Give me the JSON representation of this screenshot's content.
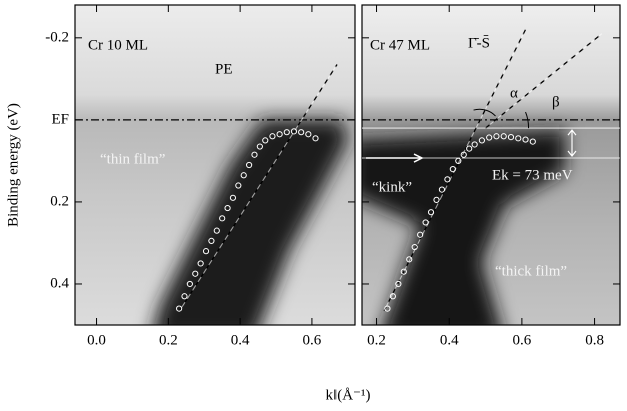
{
  "chart_data": [
    {
      "type": "scatter",
      "ylabel": "Binding energy (eV)",
      "xlabel": "k‖(Å⁻¹)",
      "annotations": [
        "Cr 10 ML",
        "PE",
        "“thin film”"
      ],
      "xlim": [
        -0.06,
        0.72
      ],
      "ylim": [
        0.5,
        -0.28
      ],
      "xticks": [
        {
          "value": 0,
          "label": "0.0"
        },
        0.2,
        0.4,
        0.6
      ],
      "yticks": [
        -0.2,
        {
          "value": 0,
          "label": "EF"
        },
        0.2,
        0.4
      ],
      "y_tick_labels": true,
      "series": [
        {
          "color": "#ffffff",
          "x": [
            0.23,
            0.245,
            0.26,
            0.275,
            0.29,
            0.305,
            0.32,
            0.335,
            0.35,
            0.365,
            0.38,
            0.395,
            0.41,
            0.425,
            0.44,
            0.455,
            0.47,
            0.49,
            0.51,
            0.53,
            0.55,
            0.57,
            0.59,
            0.61
          ],
          "values": [
            0.46,
            0.43,
            0.4,
            0.375,
            0.35,
            0.32,
            0.295,
            0.27,
            0.24,
            0.215,
            0.19,
            0.16,
            0.135,
            0.11,
            0.085,
            0.065,
            0.05,
            0.04,
            0.035,
            0.03,
            0.028,
            0.03,
            0.035,
            0.045
          ]
        }
      ],
      "fits": [
        {
          "x": [
            0.23,
            0.67
          ],
          "y": [
            0.467,
            -0.135
          ]
        }
      ],
      "reference_lines": []
    },
    {
      "type": "scatter",
      "annotations": [
        "Cr 47 ML",
        "Γ̄-S̄",
        "α",
        "β",
        "“kink”",
        "Ek = 73 meV",
        "“thick film”"
      ],
      "xlim": [
        0.16,
        0.87
      ],
      "ylim": [
        0.5,
        -0.28
      ],
      "xticks": [
        0.2,
        0.4,
        0.6,
        0.8
      ],
      "yticks": [
        -0.2,
        {
          "value": 0,
          "label": "EF"
        },
        0.2,
        0.4
      ],
      "y_tick_labels": false,
      "series": [
        {
          "color": "#ffffff",
          "x": [
            0.23,
            0.245,
            0.26,
            0.275,
            0.29,
            0.305,
            0.32,
            0.335,
            0.35,
            0.365,
            0.38,
            0.395,
            0.41,
            0.425,
            0.44,
            0.455,
            0.47,
            0.49,
            0.51,
            0.53,
            0.55,
            0.57,
            0.59,
            0.61,
            0.63
          ],
          "values": [
            0.46,
            0.43,
            0.4,
            0.37,
            0.34,
            0.31,
            0.28,
            0.25,
            0.225,
            0.195,
            0.17,
            0.145,
            0.12,
            0.1,
            0.085,
            0.07,
            0.06,
            0.05,
            0.043,
            0.04,
            0.04,
            0.042,
            0.045,
            0.048,
            0.053
          ]
        }
      ],
      "fits": [
        {
          "x": [
            0.22,
            0.61
          ],
          "y": [
            0.467,
            -0.22
          ]
        },
        {
          "x": [
            0.5,
            0.82
          ],
          "y": [
            0.02,
            -0.21
          ]
        }
      ],
      "reference_lines": [
        0.02,
        0.093
      ]
    }
  ]
}
